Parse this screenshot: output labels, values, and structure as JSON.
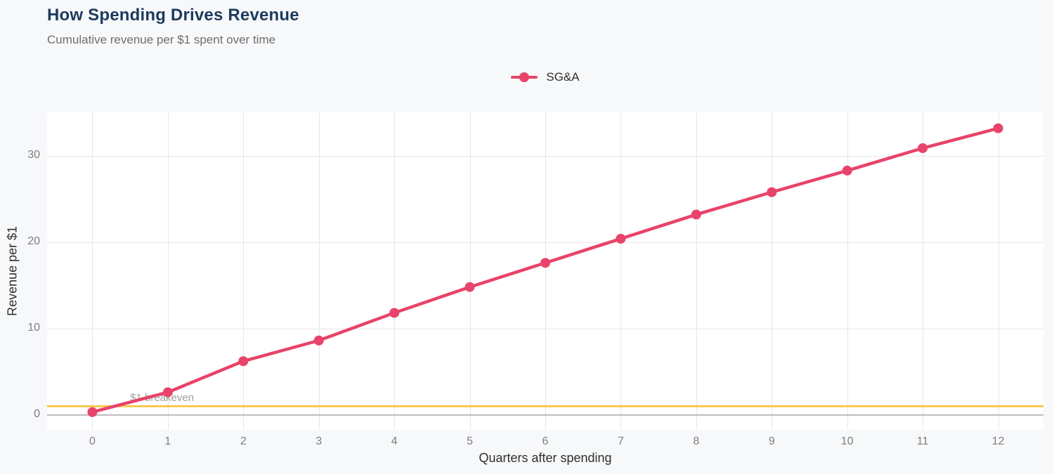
{
  "header": {
    "title": "How Spending Drives Revenue",
    "subtitle": "Cumulative revenue per $1 spent over time"
  },
  "legend": {
    "series_label": "SG&A"
  },
  "colors": {
    "series": "#e8436a",
    "breakeven_line": "#f8cb4e",
    "title_text": "#1d3a5e",
    "grid": "#e6e6e6",
    "zero_line": "#bcbcbc",
    "plot_background": "#ffffff",
    "page_background": "#f7f8fa"
  },
  "chart_data": {
    "type": "line",
    "title": "How Spending Drives Revenue",
    "subtitle": "Cumulative revenue per $1 spent over time",
    "xlabel": "Quarters after spending",
    "ylabel": "Revenue per $1",
    "series": [
      {
        "name": "SG&A",
        "color": "#e8436a",
        "x": [
          0,
          1,
          2,
          3,
          4,
          5,
          6,
          7,
          8,
          9,
          10,
          11,
          12
        ],
        "values": [
          0.3,
          2.6,
          6.2,
          8.6,
          11.8,
          14.8,
          17.6,
          20.4,
          23.2,
          25.8,
          28.3,
          30.9,
          33.2
        ]
      }
    ],
    "xticks": [
      0,
      1,
      2,
      3,
      4,
      5,
      6,
      7,
      8,
      9,
      10,
      11,
      12
    ],
    "yticks": [
      0,
      10,
      20,
      30
    ],
    "xlim": [
      -0.6,
      12.6
    ],
    "ylim": [
      -1.75,
      35.05
    ],
    "grid": true,
    "legend_position": "top-center",
    "reference_lines": [
      {
        "y": 1,
        "color": "#f8cb4e",
        "label": "$1 breakeven"
      }
    ],
    "annotations": [
      {
        "text": "$1 breakeven",
        "x": 0.5,
        "y": 1.9
      }
    ]
  }
}
